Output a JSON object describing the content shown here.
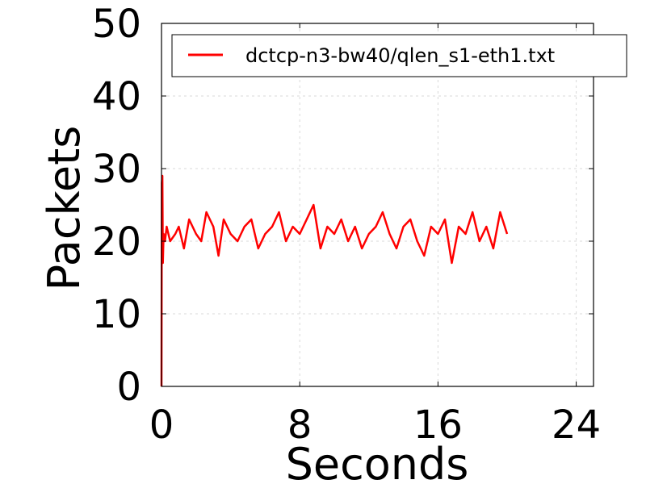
{
  "chart_data": {
    "type": "line",
    "title": "",
    "xlabel": "Seconds",
    "ylabel": "Packets",
    "xlim": [
      0,
      25
    ],
    "ylim": [
      0,
      50
    ],
    "xticks": [
      0,
      8,
      16,
      24
    ],
    "yticks": [
      0,
      10,
      20,
      30,
      40,
      50
    ],
    "xtick_labels": [
      "0",
      "8",
      "16",
      "24"
    ],
    "ytick_labels": [
      "0",
      "10",
      "20",
      "30",
      "40",
      "50"
    ],
    "grid": true,
    "legend_position": "top-right",
    "series": [
      {
        "name": "dctcp-n3-bw40/qlen_s1-eth1.txt",
        "color": "#ff0000",
        "x": [
          0,
          0.02,
          0.05,
          0.08,
          0.12,
          0.2,
          0.3,
          0.5,
          0.8,
          1.0,
          1.3,
          1.6,
          2.0,
          2.3,
          2.6,
          3.0,
          3.3,
          3.6,
          4.0,
          4.4,
          4.8,
          5.2,
          5.6,
          6.0,
          6.4,
          6.8,
          7.2,
          7.6,
          8.0,
          8.4,
          8.8,
          9.2,
          9.6,
          10.0,
          10.4,
          10.8,
          11.2,
          11.6,
          12.0,
          12.4,
          12.8,
          13.2,
          13.6,
          14.0,
          14.4,
          14.8,
          15.2,
          15.6,
          16.0,
          16.4,
          16.8,
          17.2,
          17.6,
          18.0,
          18.4,
          18.8,
          19.2,
          19.6,
          20.0
        ],
        "y": [
          0,
          28,
          29,
          17,
          21,
          20,
          22,
          20,
          21,
          22,
          19,
          23,
          21,
          20,
          24,
          22,
          18,
          23,
          21,
          20,
          22,
          23,
          19,
          21,
          22,
          24,
          20,
          22,
          21,
          23,
          25,
          19,
          22,
          21,
          23,
          20,
          22,
          19,
          21,
          22,
          24,
          21,
          19,
          22,
          23,
          20,
          18,
          22,
          21,
          23,
          17,
          22,
          21,
          24,
          20,
          22,
          19,
          24,
          21
        ]
      }
    ]
  }
}
